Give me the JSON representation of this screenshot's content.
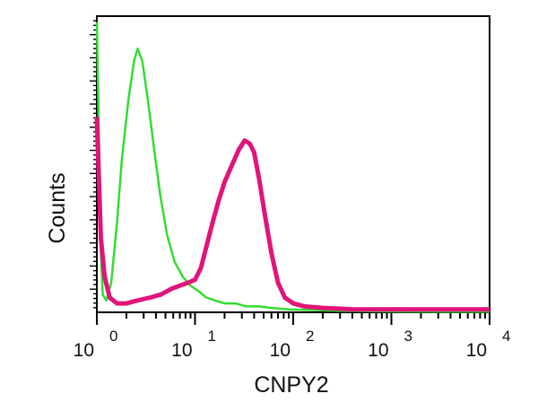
{
  "chart_data": {
    "type": "line",
    "title": "",
    "xlabel": "CNPY2",
    "ylabel": "Counts",
    "x_scale": "log",
    "xlim": [
      1,
      10000
    ],
    "ylim": [
      0,
      100
    ],
    "y_tick_labels": false,
    "x_ticks": [
      {
        "value": 1,
        "base": "10",
        "exp": "0"
      },
      {
        "value": 10,
        "base": "10",
        "exp": "1"
      },
      {
        "value": 100,
        "base": "10",
        "exp": "2"
      },
      {
        "value": 1000,
        "base": "10",
        "exp": "3"
      },
      {
        "value": 10000,
        "base": "10",
        "exp": "4"
      }
    ],
    "series": [
      {
        "color": "#33dd33",
        "points": [
          [
            1.0,
            98
          ],
          [
            1.05,
            60
          ],
          [
            1.1,
            20
          ],
          [
            1.15,
            6
          ],
          [
            1.25,
            4
          ],
          [
            1.4,
            10
          ],
          [
            1.6,
            30
          ],
          [
            1.8,
            52
          ],
          [
            2.1,
            72
          ],
          [
            2.4,
            85
          ],
          [
            2.6,
            89
          ],
          [
            2.9,
            85
          ],
          [
            3.3,
            72
          ],
          [
            3.8,
            56
          ],
          [
            4.4,
            40
          ],
          [
            5.2,
            26
          ],
          [
            6.2,
            17
          ],
          [
            7.5,
            12
          ],
          [
            9,
            9
          ],
          [
            11,
            7
          ],
          [
            13,
            5
          ],
          [
            16,
            4
          ],
          [
            20,
            3
          ],
          [
            26,
            3
          ],
          [
            33,
            2
          ],
          [
            45,
            2
          ],
          [
            60,
            1.5
          ],
          [
            90,
            1
          ],
          [
            150,
            0.8
          ],
          [
            300,
            0.5
          ],
          [
            1000,
            0.3
          ],
          [
            10000,
            0.2
          ]
        ]
      },
      {
        "color": "#e0147a",
        "points": [
          [
            1.0,
            66
          ],
          [
            1.05,
            45
          ],
          [
            1.1,
            25
          ],
          [
            1.2,
            12
          ],
          [
            1.35,
            5
          ],
          [
            1.6,
            3
          ],
          [
            2.0,
            3
          ],
          [
            2.6,
            4
          ],
          [
            3.5,
            5
          ],
          [
            4.5,
            6
          ],
          [
            5.8,
            8
          ],
          [
            7.0,
            9
          ],
          [
            8.5,
            10
          ],
          [
            10,
            11
          ],
          [
            11.5,
            15
          ],
          [
            13,
            22
          ],
          [
            15,
            30
          ],
          [
            17.5,
            38
          ],
          [
            20,
            44
          ],
          [
            24,
            50
          ],
          [
            28,
            55
          ],
          [
            32,
            58
          ],
          [
            36,
            57
          ],
          [
            40,
            54
          ],
          [
            45,
            45
          ],
          [
            52,
            32
          ],
          [
            60,
            20
          ],
          [
            70,
            10
          ],
          [
            82,
            5
          ],
          [
            100,
            3
          ],
          [
            130,
            2
          ],
          [
            200,
            1.5
          ],
          [
            400,
            1
          ],
          [
            1000,
            1
          ],
          [
            10000,
            1
          ]
        ]
      }
    ]
  }
}
